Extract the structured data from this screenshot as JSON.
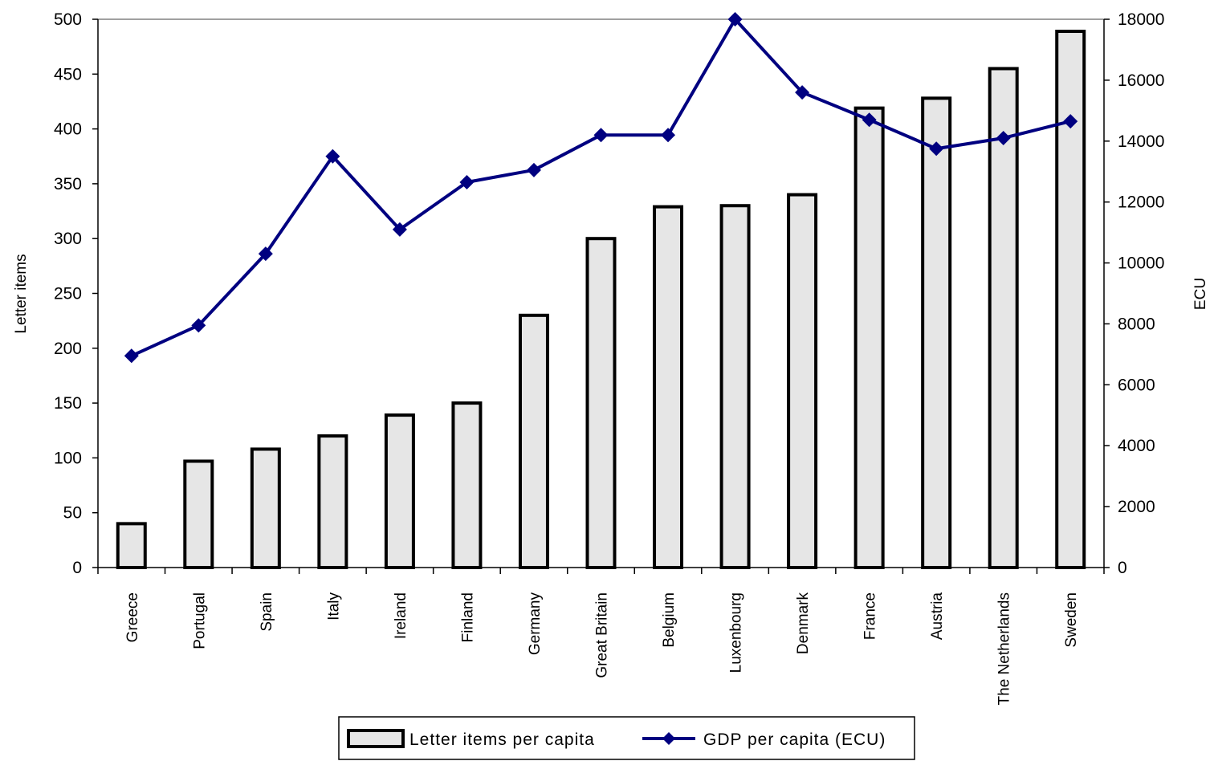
{
  "chart_data": {
    "type": "bar",
    "title": "",
    "categories": [
      "Greece",
      "Portugal",
      "Spain",
      "Italy",
      "Ireland",
      "Finland",
      "Germany",
      "Great Britain",
      "Belgium",
      "Luxenbourg",
      "Denmark",
      "France",
      "Austria",
      "The Netherlands",
      "Sweden"
    ],
    "series": [
      {
        "name": "Letter items per capita",
        "type": "bar",
        "axis": "left",
        "color": "#e6e6e6",
        "values": [
          40,
          97,
          108,
          120,
          139,
          150,
          230,
          300,
          329,
          330,
          340,
          419,
          428,
          455,
          489
        ]
      },
      {
        "name": "GDP per capita (ECU)",
        "type": "line",
        "axis": "right",
        "color": "#000080",
        "values": [
          6950,
          7950,
          10300,
          13500,
          11100,
          12650,
          13050,
          14200,
          14200,
          18000,
          15600,
          14700,
          13750,
          14100,
          14650
        ]
      }
    ],
    "ylabel": "Letter items",
    "ylim": [
      0,
      500
    ],
    "yticks": [
      "0",
      "50",
      "100",
      "150",
      "200",
      "250",
      "300",
      "350",
      "400",
      "450",
      "500"
    ],
    "y2label": "ECU",
    "y2lim": [
      0,
      18000
    ],
    "y2ticks": [
      "0",
      "2000",
      "4000",
      "6000",
      "8000",
      "10000",
      "12000",
      "14000",
      "16000",
      "18000"
    ],
    "grid": false,
    "legend": "bottom"
  }
}
